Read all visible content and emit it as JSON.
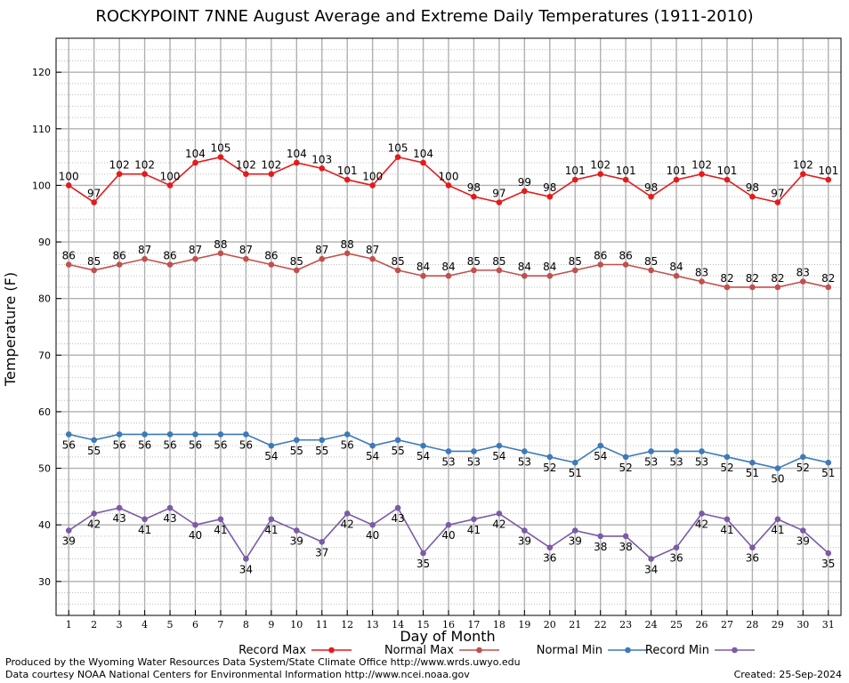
{
  "chart_data": {
    "type": "line",
    "title": "ROCKYPOINT 7NNE August Average and Extreme Daily Temperatures (1911-2010)",
    "xlabel": "Day of Month",
    "ylabel": "Temperature (F)",
    "xlim": [
      0.5,
      31.5
    ],
    "ylim": [
      24,
      126
    ],
    "yticks": [
      30,
      40,
      50,
      60,
      70,
      80,
      90,
      100,
      110,
      120
    ],
    "x": [
      1,
      2,
      3,
      4,
      5,
      6,
      7,
      8,
      9,
      10,
      11,
      12,
      13,
      14,
      15,
      16,
      17,
      18,
      19,
      20,
      21,
      22,
      23,
      24,
      25,
      26,
      27,
      28,
      29,
      30,
      31
    ],
    "grid": true,
    "legend_position": "bottom",
    "series": [
      {
        "name": "Record Max",
        "color": "#e41a1c",
        "label_pos": "above",
        "values": [
          100,
          97,
          102,
          102,
          100,
          104,
          105,
          102,
          102,
          104,
          103,
          101,
          100,
          105,
          104,
          100,
          98,
          97,
          99,
          98,
          101,
          102,
          101,
          98,
          101,
          102,
          101,
          98,
          97,
          102,
          101
        ]
      },
      {
        "name": "Normal Max",
        "color": "#c0504d",
        "label_pos": "above",
        "values": [
          86,
          85,
          86,
          87,
          86,
          87,
          88,
          87,
          86,
          85,
          87,
          88,
          87,
          85,
          84,
          84,
          85,
          85,
          84,
          84,
          85,
          86,
          86,
          85,
          84,
          83,
          82,
          82,
          82,
          83,
          82
        ]
      },
      {
        "name": "Normal Min",
        "color": "#3d7ab8",
        "label_pos": "below",
        "values": [
          56,
          55,
          56,
          56,
          56,
          56,
          56,
          56,
          54,
          55,
          55,
          56,
          54,
          55,
          54,
          53,
          53,
          54,
          53,
          52,
          51,
          54,
          52,
          53,
          53,
          53,
          52,
          51,
          50,
          52,
          51
        ]
      },
      {
        "name": "Record Min",
        "color": "#7b5ba6",
        "label_pos": "below",
        "values": [
          39,
          42,
          43,
          41,
          43,
          40,
          41,
          34,
          41,
          39,
          37,
          42,
          40,
          43,
          35,
          40,
          41,
          42,
          39,
          36,
          39,
          38,
          38,
          34,
          36,
          42,
          41,
          36,
          41,
          39,
          35
        ]
      }
    ]
  },
  "footer": {
    "credit_line1": "Produced by the Wyoming Water Resources Data System/State Climate Office http://www.wrds.uwyo.edu",
    "credit_line2": "Data courtesy NOAA National Centers for Environmental Information http://www.ncei.noaa.gov",
    "created": "Created:  25-Sep-2024"
  }
}
